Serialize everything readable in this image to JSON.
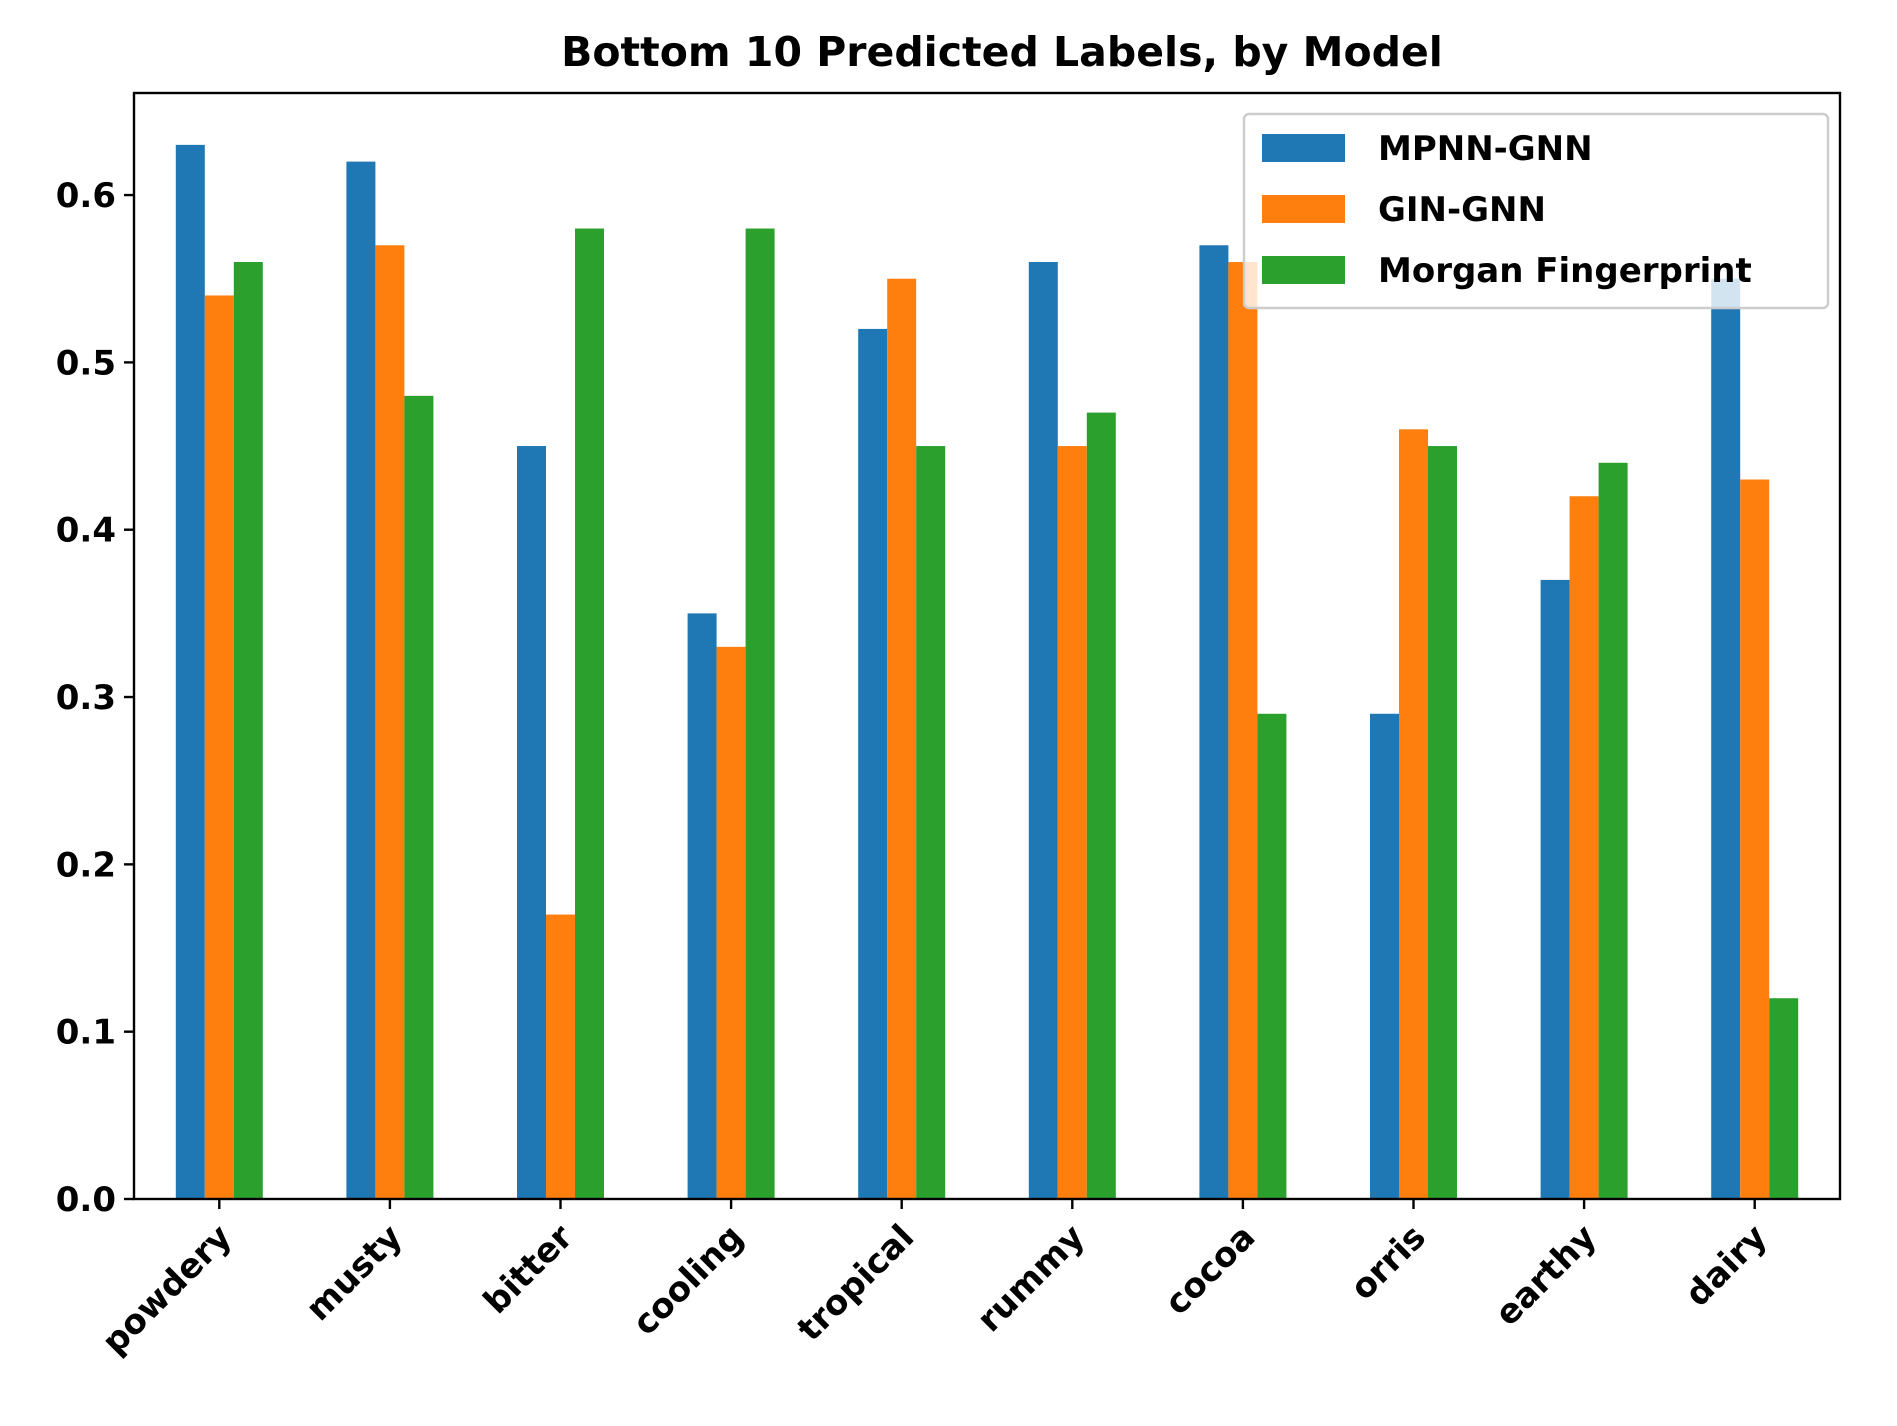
{
  "chart_data": {
    "type": "bar",
    "title": "Bottom 10 Predicted Labels, by Model",
    "xlabel": "",
    "ylabel": "",
    "categories": [
      "powdery",
      "musty",
      "bitter",
      "cooling",
      "tropical",
      "rummy",
      "cocoa",
      "orris",
      "earthy",
      "dairy"
    ],
    "series": [
      {
        "name": "MPNN-GNN",
        "color": "#1f77b4",
        "values": [
          0.63,
          0.62,
          0.45,
          0.35,
          0.52,
          0.56,
          0.57,
          0.29,
          0.37,
          0.55
        ]
      },
      {
        "name": "GIN-GNN",
        "color": "#ff7f0e",
        "values": [
          0.54,
          0.57,
          0.17,
          0.33,
          0.55,
          0.45,
          0.56,
          0.46,
          0.42,
          0.43
        ]
      },
      {
        "name": "Morgan Fingerprint",
        "color": "#2ca02c",
        "values": [
          0.56,
          0.48,
          0.58,
          0.58,
          0.45,
          0.47,
          0.29,
          0.45,
          0.44,
          0.12
        ]
      }
    ],
    "ylim": [
      0,
      0.661
    ],
    "yticks": [
      "0.0",
      "0.1",
      "0.2",
      "0.3",
      "0.4",
      "0.5",
      "0.6"
    ],
    "grid": false,
    "legend_position": "top-right"
  }
}
